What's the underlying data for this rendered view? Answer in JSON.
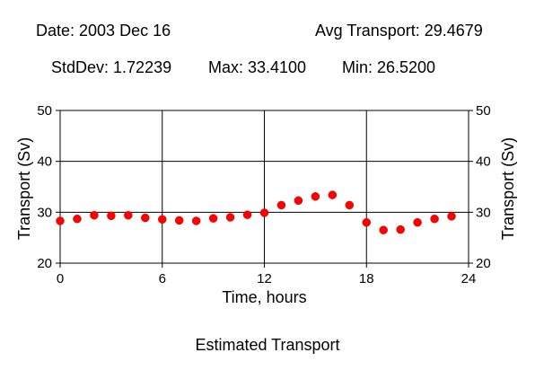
{
  "header": {
    "date": "Date: 2003 Dec 16",
    "avg": "Avg Transport: 29.4679",
    "stddev": "StdDev: 1.72239",
    "max": "Max: 33.4100",
    "min": "Min: 26.5200"
  },
  "caption": "Estimated Transport",
  "chart_data": {
    "type": "scatter",
    "xlabel": "Time, hours",
    "ylabel": "Transport (Sv)",
    "xlim": [
      0,
      24
    ],
    "ylim": [
      20,
      50
    ],
    "xticks": [
      0,
      6,
      12,
      18,
      24
    ],
    "yticks": [
      20,
      30,
      40,
      50
    ],
    "grid": true,
    "marker_color": "#ff0000",
    "x": [
      0,
      1,
      2,
      3,
      4,
      5,
      6,
      7,
      8,
      9,
      10,
      11,
      12,
      13,
      14,
      15,
      16,
      17,
      18,
      19,
      20,
      21,
      22,
      23
    ],
    "y": [
      28.3,
      28.7,
      29.4,
      29.3,
      29.4,
      28.9,
      28.6,
      28.4,
      28.3,
      28.8,
      29.0,
      29.5,
      29.9,
      31.4,
      32.3,
      33.1,
      33.4,
      31.4,
      28.0,
      26.5,
      26.6,
      28.0,
      28.7,
      29.2
    ]
  }
}
